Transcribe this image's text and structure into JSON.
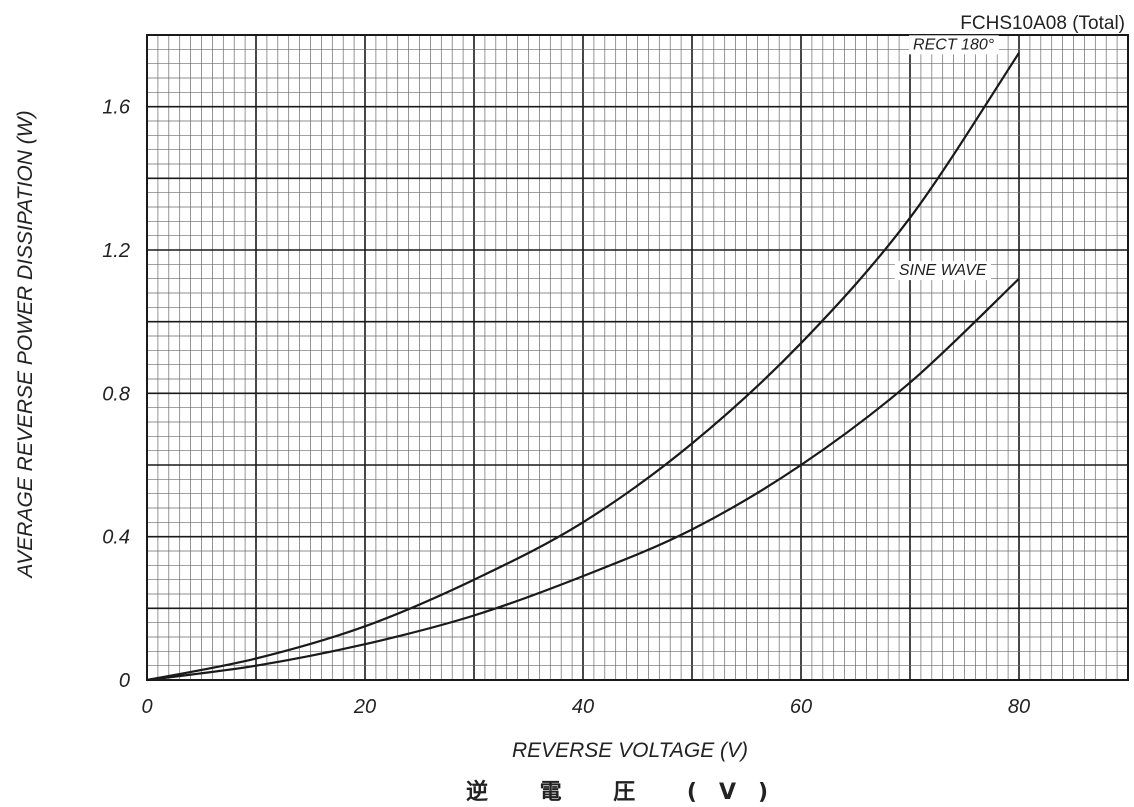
{
  "chart_data": {
    "type": "line",
    "part_number": "FCHS10A08 (Total)",
    "xlabel": "REVERSE VOLTAGE (V)",
    "xlabel_secondary": "逆 電 圧 (V)",
    "ylabel": "AVERAGE REVERSE POWER DISSIPATION (W)",
    "xlim": [
      0,
      90
    ],
    "ylim": [
      0,
      1.8
    ],
    "x_ticks": [
      0,
      20,
      40,
      60,
      80
    ],
    "x_tick_labels": [
      "0",
      "20",
      "40",
      "60",
      "80"
    ],
    "y_ticks": [
      0,
      0.4,
      0.8,
      1.2,
      1.6
    ],
    "y_tick_labels": [
      "0",
      "0.4",
      "0.8",
      "1.2",
      "1.6"
    ],
    "grid": true,
    "series": [
      {
        "name": "RECT 180°",
        "x": [
          0,
          10,
          20,
          30,
          40,
          50,
          60,
          70,
          80
        ],
        "y": [
          0,
          0.06,
          0.15,
          0.28,
          0.44,
          0.66,
          0.94,
          1.29,
          1.75
        ]
      },
      {
        "name": "SINE WAVE",
        "x": [
          0,
          10,
          20,
          30,
          40,
          50,
          60,
          70,
          80
        ],
        "y": [
          0,
          0.04,
          0.1,
          0.18,
          0.29,
          0.42,
          0.6,
          0.83,
          1.12
        ]
      }
    ]
  },
  "colors": {
    "grid_minor": "#6a6a6a",
    "grid_major": "#1a1a1a",
    "line": "#1a1a1a",
    "background": "#ffffff"
  }
}
